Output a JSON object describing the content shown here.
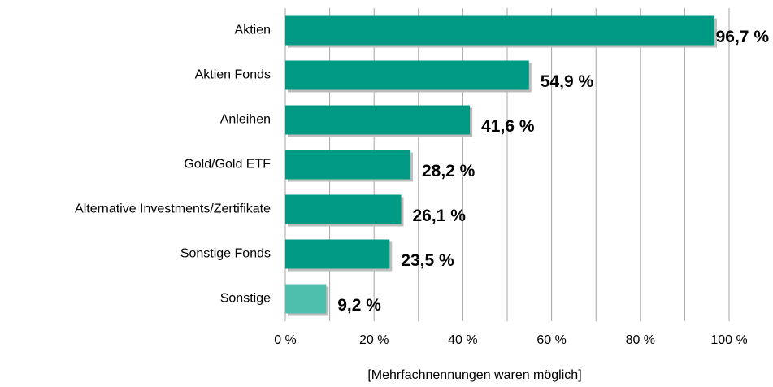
{
  "chart_data": {
    "type": "bar",
    "orientation": "horizontal",
    "categories": [
      "Aktien",
      "Aktien Fonds",
      "Anleihen",
      "Gold/Gold ETF",
      "Alternative Investments/Zertifikate",
      "Sonstige Fonds",
      "Sonstige"
    ],
    "values": [
      96.7,
      54.9,
      41.6,
      28.2,
      26.1,
      23.5,
      9.2
    ],
    "value_labels": [
      "96,7 %",
      "54,9 %",
      "41,6 %",
      "28,2 %",
      "26,1 %",
      "23,5 %",
      "9,2 %"
    ],
    "colors": [
      "#009a84",
      "#009a84",
      "#009a84",
      "#009a84",
      "#009a84",
      "#009a84",
      "#4fbfad"
    ],
    "xlim": [
      0,
      100
    ],
    "xticks": [
      {
        "value": 0,
        "label": "0 %"
      },
      {
        "value": 20,
        "label": "20 %"
      },
      {
        "value": 40,
        "label": "40 %"
      },
      {
        "value": 60,
        "label": "60 %"
      },
      {
        "value": 80,
        "label": "80 %"
      },
      {
        "value": 100,
        "label": "100 %"
      }
    ],
    "minor_xticks": [
      10,
      30,
      50,
      70,
      90
    ],
    "grid": true,
    "x_label": "[Mehrfachnennungen waren möglich]"
  }
}
